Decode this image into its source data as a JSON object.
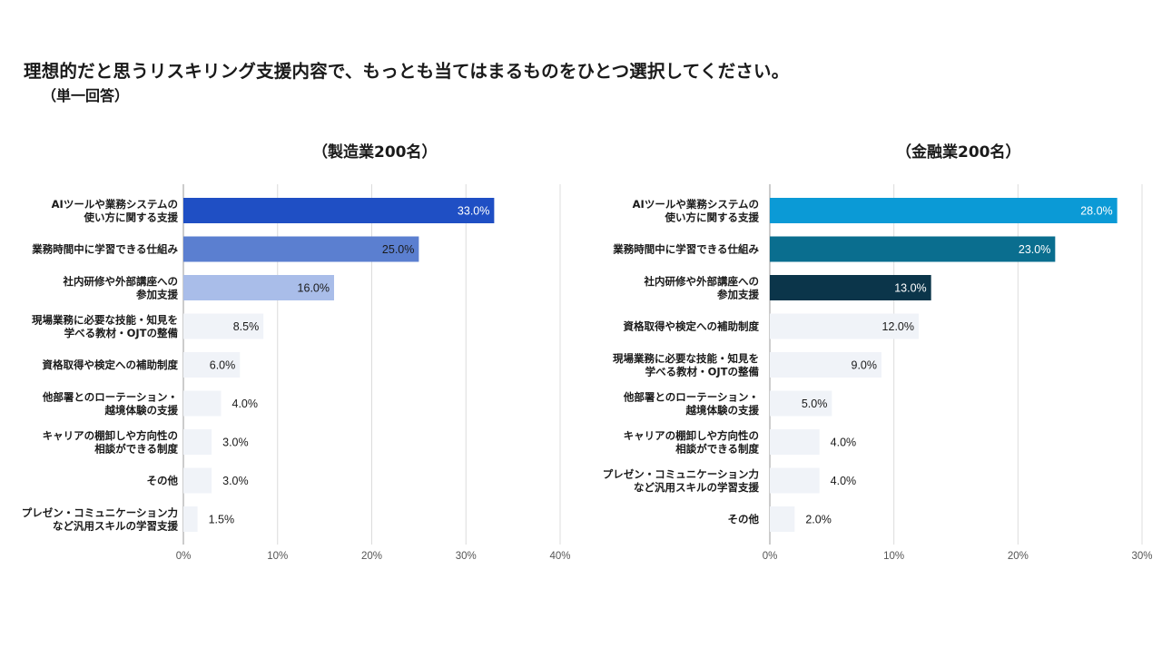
{
  "title": "理想的だと思うリスキリング支援内容で、もっとも当てはまるものをひとつ選択してください。",
  "subtitle": "（単一回答）",
  "chart_data": [
    {
      "type": "bar",
      "orientation": "horizontal",
      "title": "（製造業200名）",
      "categories": [
        "AIツールや業務システムの\n使い方に関する支援",
        "業務時間中に学習できる仕組み",
        "社内研修や外部講座への\n参加支援",
        "現場業務に必要な技能・知見を\n学べる教材・OJTの整備",
        "資格取得や検定への補助制度",
        "他部署とのローテーション・\n越境体験の支援",
        "キャリアの棚卸しや方向性の\n相談ができる制度",
        "その他",
        "プレゼン・コミュニケーション力\nなど汎用スキルの学習支援"
      ],
      "values": [
        33.0,
        25.0,
        16.0,
        8.5,
        6.0,
        4.0,
        3.0,
        3.0,
        1.5
      ],
      "value_labels": [
        "33.0%",
        "25.0%",
        "16.0%",
        "8.5%",
        "6.0%",
        "4.0%",
        "3.0%",
        "3.0%",
        "1.5%"
      ],
      "colors": [
        "#1f4fc4",
        "#5b7fd0",
        "#a9bde9",
        "#f0f3f8",
        "#f0f3f8",
        "#f0f3f8",
        "#f0f3f8",
        "#f0f3f8",
        "#f0f3f8"
      ],
      "label_colors": [
        "#ffffff",
        "#1a1a1a",
        "#1a1a1a",
        "#1a1a1a",
        "#1a1a1a",
        "#1a1a1a",
        "#1a1a1a",
        "#1a1a1a",
        "#1a1a1a"
      ],
      "xlim": [
        0,
        40
      ],
      "xticks": [
        0,
        10,
        20,
        30,
        40
      ],
      "xtick_labels": [
        "0%",
        "10%",
        "20%",
        "30%",
        "40%"
      ],
      "grid": true
    },
    {
      "type": "bar",
      "orientation": "horizontal",
      "title": "（金融業200名）",
      "categories": [
        "AIツールや業務システムの\n使い方に関する支援",
        "業務時間中に学習できる仕組み",
        "社内研修や外部講座への\n参加支援",
        "資格取得や検定への補助制度",
        "現場業務に必要な技能・知見を\n学べる教材・OJTの整備",
        "他部署とのローテーション・\n越境体験の支援",
        "キャリアの棚卸しや方向性の\n相談ができる制度",
        "プレゼン・コミュニケーション力\nなど汎用スキルの学習支援",
        "その他"
      ],
      "values": [
        28.0,
        23.0,
        13.0,
        12.0,
        9.0,
        5.0,
        4.0,
        4.0,
        2.0
      ],
      "value_labels": [
        "28.0%",
        "23.0%",
        "13.0%",
        "12.0%",
        "9.0%",
        "5.0%",
        "4.0%",
        "4.0%",
        "2.0%"
      ],
      "colors": [
        "#0b9ad6",
        "#0a6e8f",
        "#0b354a",
        "#f0f3f8",
        "#f0f3f8",
        "#f0f3f8",
        "#f0f3f8",
        "#f0f3f8",
        "#f0f3f8"
      ],
      "label_colors": [
        "#ffffff",
        "#ffffff",
        "#ffffff",
        "#1a1a1a",
        "#1a1a1a",
        "#1a1a1a",
        "#1a1a1a",
        "#1a1a1a",
        "#1a1a1a"
      ],
      "xlim": [
        0,
        30
      ],
      "xticks": [
        0,
        10,
        20,
        30
      ],
      "xtick_labels": [
        "0%",
        "10%",
        "20%",
        "30%"
      ],
      "grid": true
    }
  ]
}
